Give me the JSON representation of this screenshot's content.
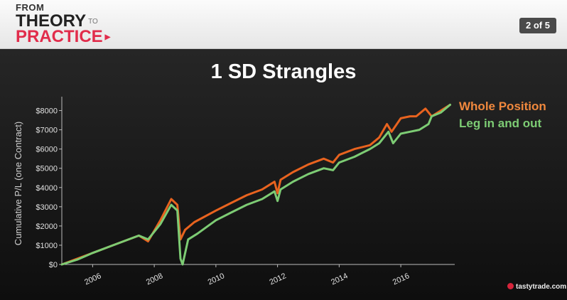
{
  "header": {
    "logo_line1": "FROM",
    "logo_line2": "THEORY",
    "logo_to": "TO",
    "logo_line3": "PRACTICE",
    "page_indicator": "2 of 5"
  },
  "brand": "tastytrade.com",
  "colors": {
    "whole_position": "#e8631f",
    "leg_in_and_out": "#7dcc74",
    "background": "#141414",
    "accent": "#e12c4b"
  },
  "chart_data": {
    "type": "line",
    "title": "1 SD Strangles",
    "ylabel": "Cumulative P/L (one Contract)",
    "xlabel": "",
    "xlim": [
      2005.0,
      2017.75
    ],
    "ylim": [
      0,
      8500
    ],
    "x_ticks": [
      "2006",
      "2008",
      "2010",
      "2012",
      "2014",
      "2016"
    ],
    "y_ticks": [
      "$0",
      "$1000",
      "$2000",
      "$3000",
      "$4000",
      "$5000",
      "$6000",
      "$7000",
      "$8000"
    ],
    "legend_position": "right",
    "series": [
      {
        "name": "Whole Position",
        "x": [
          2005.0,
          2005.5,
          2006.0,
          2006.5,
          2007.0,
          2007.5,
          2007.8,
          2008.2,
          2008.55,
          2008.75,
          2008.85,
          2009.0,
          2009.3,
          2010.0,
          2010.5,
          2011.0,
          2011.5,
          2011.9,
          2012.0,
          2012.1,
          2012.5,
          2013.0,
          2013.5,
          2013.8,
          2014.0,
          2014.5,
          2015.0,
          2015.3,
          2015.55,
          2015.7,
          2016.0,
          2016.3,
          2016.5,
          2016.8,
          2017.0,
          2017.3,
          2017.6
        ],
        "y": [
          0,
          300,
          600,
          900,
          1200,
          1500,
          1200,
          2300,
          3400,
          3100,
          1300,
          1800,
          2200,
          2800,
          3200,
          3600,
          3900,
          4300,
          3700,
          4400,
          4800,
          5200,
          5500,
          5300,
          5700,
          6000,
          6200,
          6600,
          7300,
          6900,
          7600,
          7700,
          7700,
          8100,
          7700,
          8000,
          8300
        ]
      },
      {
        "name": "Leg in and out",
        "x": [
          2005.0,
          2005.5,
          2006.0,
          2006.5,
          2007.0,
          2007.5,
          2007.8,
          2008.2,
          2008.55,
          2008.75,
          2008.85,
          2008.92,
          2009.1,
          2009.4,
          2010.0,
          2010.5,
          2011.0,
          2011.5,
          2011.9,
          2012.0,
          2012.1,
          2012.5,
          2013.0,
          2013.5,
          2013.8,
          2014.0,
          2014.5,
          2015.0,
          2015.3,
          2015.6,
          2015.75,
          2016.0,
          2016.3,
          2016.6,
          2016.9,
          2017.0,
          2017.3,
          2017.6
        ],
        "y": [
          0,
          250,
          600,
          900,
          1200,
          1500,
          1300,
          2100,
          3100,
          2800,
          300,
          0,
          1300,
          1600,
          2300,
          2700,
          3100,
          3400,
          3800,
          3300,
          3900,
          4300,
          4700,
          5000,
          4900,
          5300,
          5600,
          6000,
          6300,
          6900,
          6300,
          6800,
          6900,
          7000,
          7300,
          7700,
          7900,
          8300
        ]
      }
    ]
  }
}
